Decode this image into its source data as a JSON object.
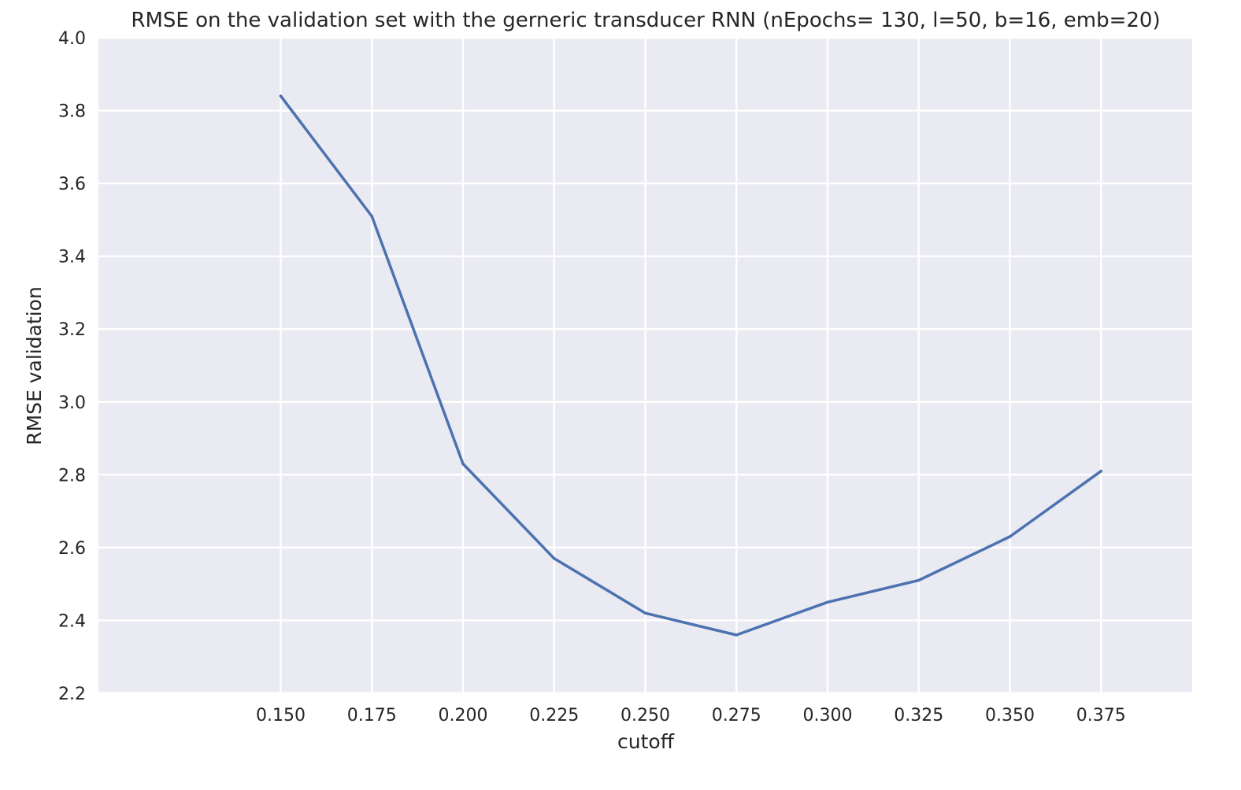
{
  "chart_data": {
    "type": "line",
    "title": "RMSE on the validation set with the gerneric transducer RNN (nEpochs= 130, l=50, b=16, emb=20)",
    "xlabel": "cutoff",
    "ylabel": "RMSE validation",
    "xlim": [
      0.1,
      0.4
    ],
    "ylim": [
      2.2,
      4.0
    ],
    "xticks": [
      "0.150",
      "0.175",
      "0.200",
      "0.225",
      "0.250",
      "0.275",
      "0.300",
      "0.325",
      "0.350",
      "0.375"
    ],
    "yticks": [
      "2.2",
      "2.4",
      "2.6",
      "2.8",
      "3.0",
      "3.2",
      "3.4",
      "3.6",
      "3.8",
      "4.0"
    ],
    "grid": true,
    "colors": {
      "plot_background": "#eaeaf2",
      "grid": "#ffffff",
      "series": "#4c72b0"
    },
    "series": [
      {
        "x": [
          0.15,
          0.175,
          0.2,
          0.225,
          0.25,
          0.275,
          0.3,
          0.325,
          0.35,
          0.375
        ],
        "y": [
          3.84,
          3.51,
          2.83,
          2.57,
          2.42,
          2.36,
          2.45,
          2.51,
          2.63,
          2.81
        ]
      }
    ]
  }
}
